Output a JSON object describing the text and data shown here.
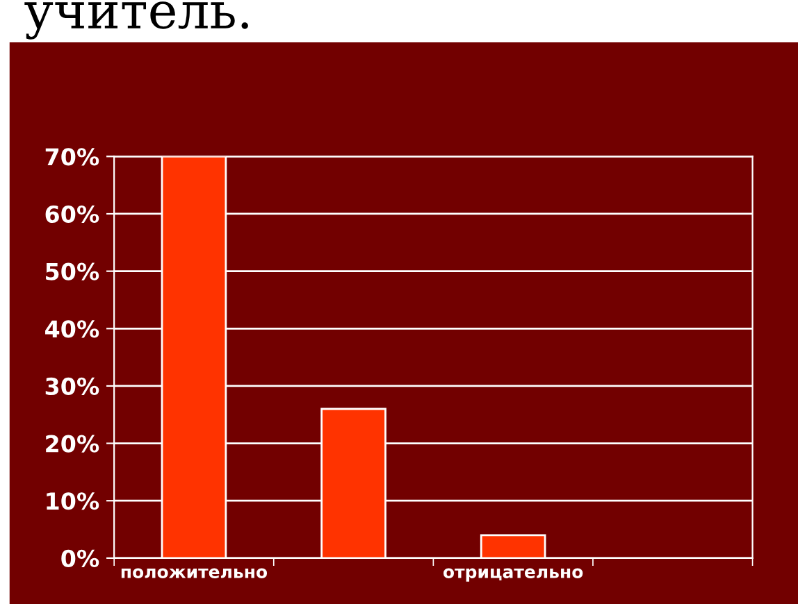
{
  "chart_data": {
    "type": "bar",
    "title": "учитель.",
    "categories": [
      "положительно",
      null,
      "отрицательно",
      null
    ],
    "values": [
      70,
      26,
      4,
      null
    ],
    "color": "#ff3300",
    "ylim": [
      0,
      70
    ],
    "yticks": [
      {
        "value": 0,
        "label": "0%"
      },
      {
        "value": 10,
        "label": "10%"
      },
      {
        "value": 20,
        "label": "20%"
      },
      {
        "value": 30,
        "label": "30%"
      },
      {
        "value": 40,
        "label": "40%"
      },
      {
        "value": 50,
        "label": "50%"
      },
      {
        "value": 60,
        "label": "60%"
      },
      {
        "value": 70,
        "label": "70%"
      }
    ],
    "grid": "y",
    "legend": false
  }
}
